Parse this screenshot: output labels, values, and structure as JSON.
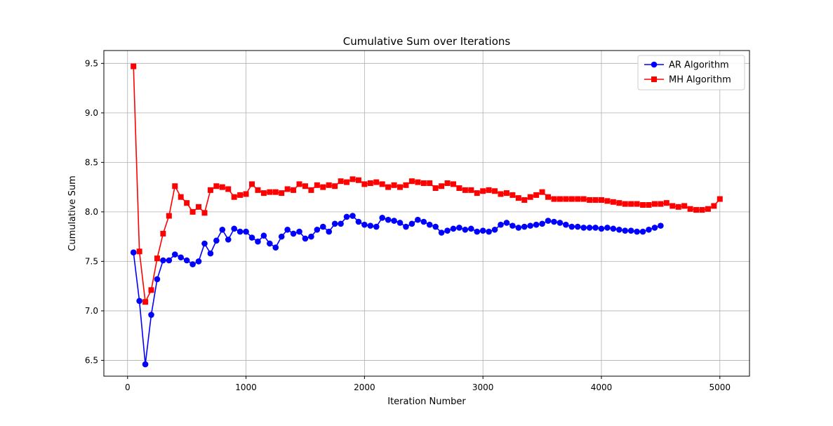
{
  "chart_data": {
    "type": "line",
    "title": "Cumulative Sum over Iterations",
    "xlabel": "Iteration Number",
    "ylabel": "Cumulative Sum",
    "xlim": [
      -200,
      5250
    ],
    "ylim": [
      6.34,
      9.63
    ],
    "xticks": [
      0,
      1000,
      2000,
      3000,
      4000,
      5000
    ],
    "yticks": [
      6.5,
      7.0,
      7.5,
      8.0,
      8.5,
      9.0,
      9.5
    ],
    "xtick_labels": [
      "0",
      "1000",
      "2000",
      "3000",
      "4000",
      "5000"
    ],
    "ytick_labels": [
      "6.5",
      "7.0",
      "7.5",
      "8.0",
      "8.5",
      "9.0",
      "9.5"
    ],
    "grid": true,
    "legend_position": "top-right",
    "series": [
      {
        "name": "AR Algorithm",
        "color": "#0000ff",
        "marker": "circle",
        "x": [
          50,
          100,
          150,
          200,
          250,
          300,
          350,
          400,
          450,
          500,
          550,
          600,
          650,
          700,
          750,
          800,
          850,
          900,
          950,
          1000,
          1050,
          1100,
          1150,
          1200,
          1250,
          1300,
          1350,
          1400,
          1450,
          1500,
          1550,
          1600,
          1650,
          1700,
          1750,
          1800,
          1850,
          1900,
          1950,
          2000,
          2050,
          2100,
          2150,
          2200,
          2250,
          2300,
          2350,
          2400,
          2450,
          2500,
          2550,
          2600,
          2650,
          2700,
          2750,
          2800,
          2850,
          2900,
          2950,
          3000,
          3050,
          3100,
          3150,
          3200,
          3250,
          3300,
          3350,
          3400,
          3450,
          3500,
          3550,
          3600,
          3650,
          3700,
          3750,
          3800,
          3850,
          3900,
          3950,
          4000,
          4050,
          4100,
          4150,
          4200,
          4250,
          4300,
          4350,
          4400,
          4450,
          4500
        ],
        "y": [
          7.59,
          7.1,
          6.46,
          6.96,
          7.32,
          7.51,
          7.51,
          7.57,
          7.54,
          7.51,
          7.47,
          7.5,
          7.68,
          7.58,
          7.71,
          7.82,
          7.72,
          7.83,
          7.8,
          7.8,
          7.74,
          7.7,
          7.76,
          7.68,
          7.64,
          7.75,
          7.82,
          7.78,
          7.8,
          7.73,
          7.75,
          7.82,
          7.85,
          7.8,
          7.88,
          7.88,
          7.95,
          7.96,
          7.9,
          7.87,
          7.86,
          7.85,
          7.94,
          7.92,
          7.91,
          7.89,
          7.85,
          7.88,
          7.92,
          7.9,
          7.87,
          7.85,
          7.79,
          7.81,
          7.83,
          7.84,
          7.82,
          7.83,
          7.8,
          7.81,
          7.8,
          7.82,
          7.87,
          7.89,
          7.86,
          7.84,
          7.85,
          7.86,
          7.87,
          7.88,
          7.91,
          7.9,
          7.89,
          7.87,
          7.85,
          7.85,
          7.84,
          7.84,
          7.84,
          7.83,
          7.84,
          7.83,
          7.82,
          7.81,
          7.81,
          7.8,
          7.8,
          7.82,
          7.84,
          7.86
        ]
      },
      {
        "name": "MH Algorithm",
        "color": "#ff0000",
        "marker": "square",
        "x": [
          50,
          100,
          150,
          200,
          250,
          300,
          350,
          400,
          450,
          500,
          550,
          600,
          650,
          700,
          750,
          800,
          850,
          900,
          950,
          1000,
          1050,
          1100,
          1150,
          1200,
          1250,
          1300,
          1350,
          1400,
          1450,
          1500,
          1550,
          1600,
          1650,
          1700,
          1750,
          1800,
          1850,
          1900,
          1950,
          2000,
          2050,
          2100,
          2150,
          2200,
          2250,
          2300,
          2350,
          2400,
          2450,
          2500,
          2550,
          2600,
          2650,
          2700,
          2750,
          2800,
          2850,
          2900,
          2950,
          3000,
          3050,
          3100,
          3150,
          3200,
          3250,
          3300,
          3350,
          3400,
          3450,
          3500,
          3550,
          3600,
          3650,
          3700,
          3750,
          3800,
          3850,
          3900,
          3950,
          4000,
          4050,
          4100,
          4150,
          4200,
          4250,
          4300,
          4350,
          4400,
          4450,
          4500,
          4550,
          4600,
          4650,
          4700,
          4750,
          4800,
          4850,
          4900,
          4950,
          5000
        ],
        "y": [
          9.47,
          7.6,
          7.09,
          7.21,
          7.53,
          7.78,
          7.96,
          8.26,
          8.15,
          8.09,
          8.0,
          8.05,
          7.99,
          8.22,
          8.26,
          8.25,
          8.23,
          8.15,
          8.17,
          8.18,
          8.28,
          8.22,
          8.19,
          8.2,
          8.2,
          8.19,
          8.23,
          8.22,
          8.28,
          8.26,
          8.22,
          8.27,
          8.25,
          8.27,
          8.26,
          8.31,
          8.3,
          8.33,
          8.32,
          8.28,
          8.29,
          8.3,
          8.28,
          8.25,
          8.27,
          8.25,
          8.27,
          8.31,
          8.3,
          8.29,
          8.29,
          8.24,
          8.26,
          8.29,
          8.28,
          8.24,
          8.22,
          8.22,
          8.19,
          8.21,
          8.22,
          8.21,
          8.18,
          8.19,
          8.17,
          8.14,
          8.12,
          8.15,
          8.17,
          8.2,
          8.15,
          8.13,
          8.13,
          8.13,
          8.13,
          8.13,
          8.13,
          8.12,
          8.12,
          8.12,
          8.11,
          8.1,
          8.09,
          8.08,
          8.08,
          8.08,
          8.07,
          8.07,
          8.08,
          8.08,
          8.09,
          8.06,
          8.05,
          8.06,
          8.03,
          8.02,
          8.02,
          8.03,
          8.06,
          8.13
        ]
      }
    ]
  }
}
